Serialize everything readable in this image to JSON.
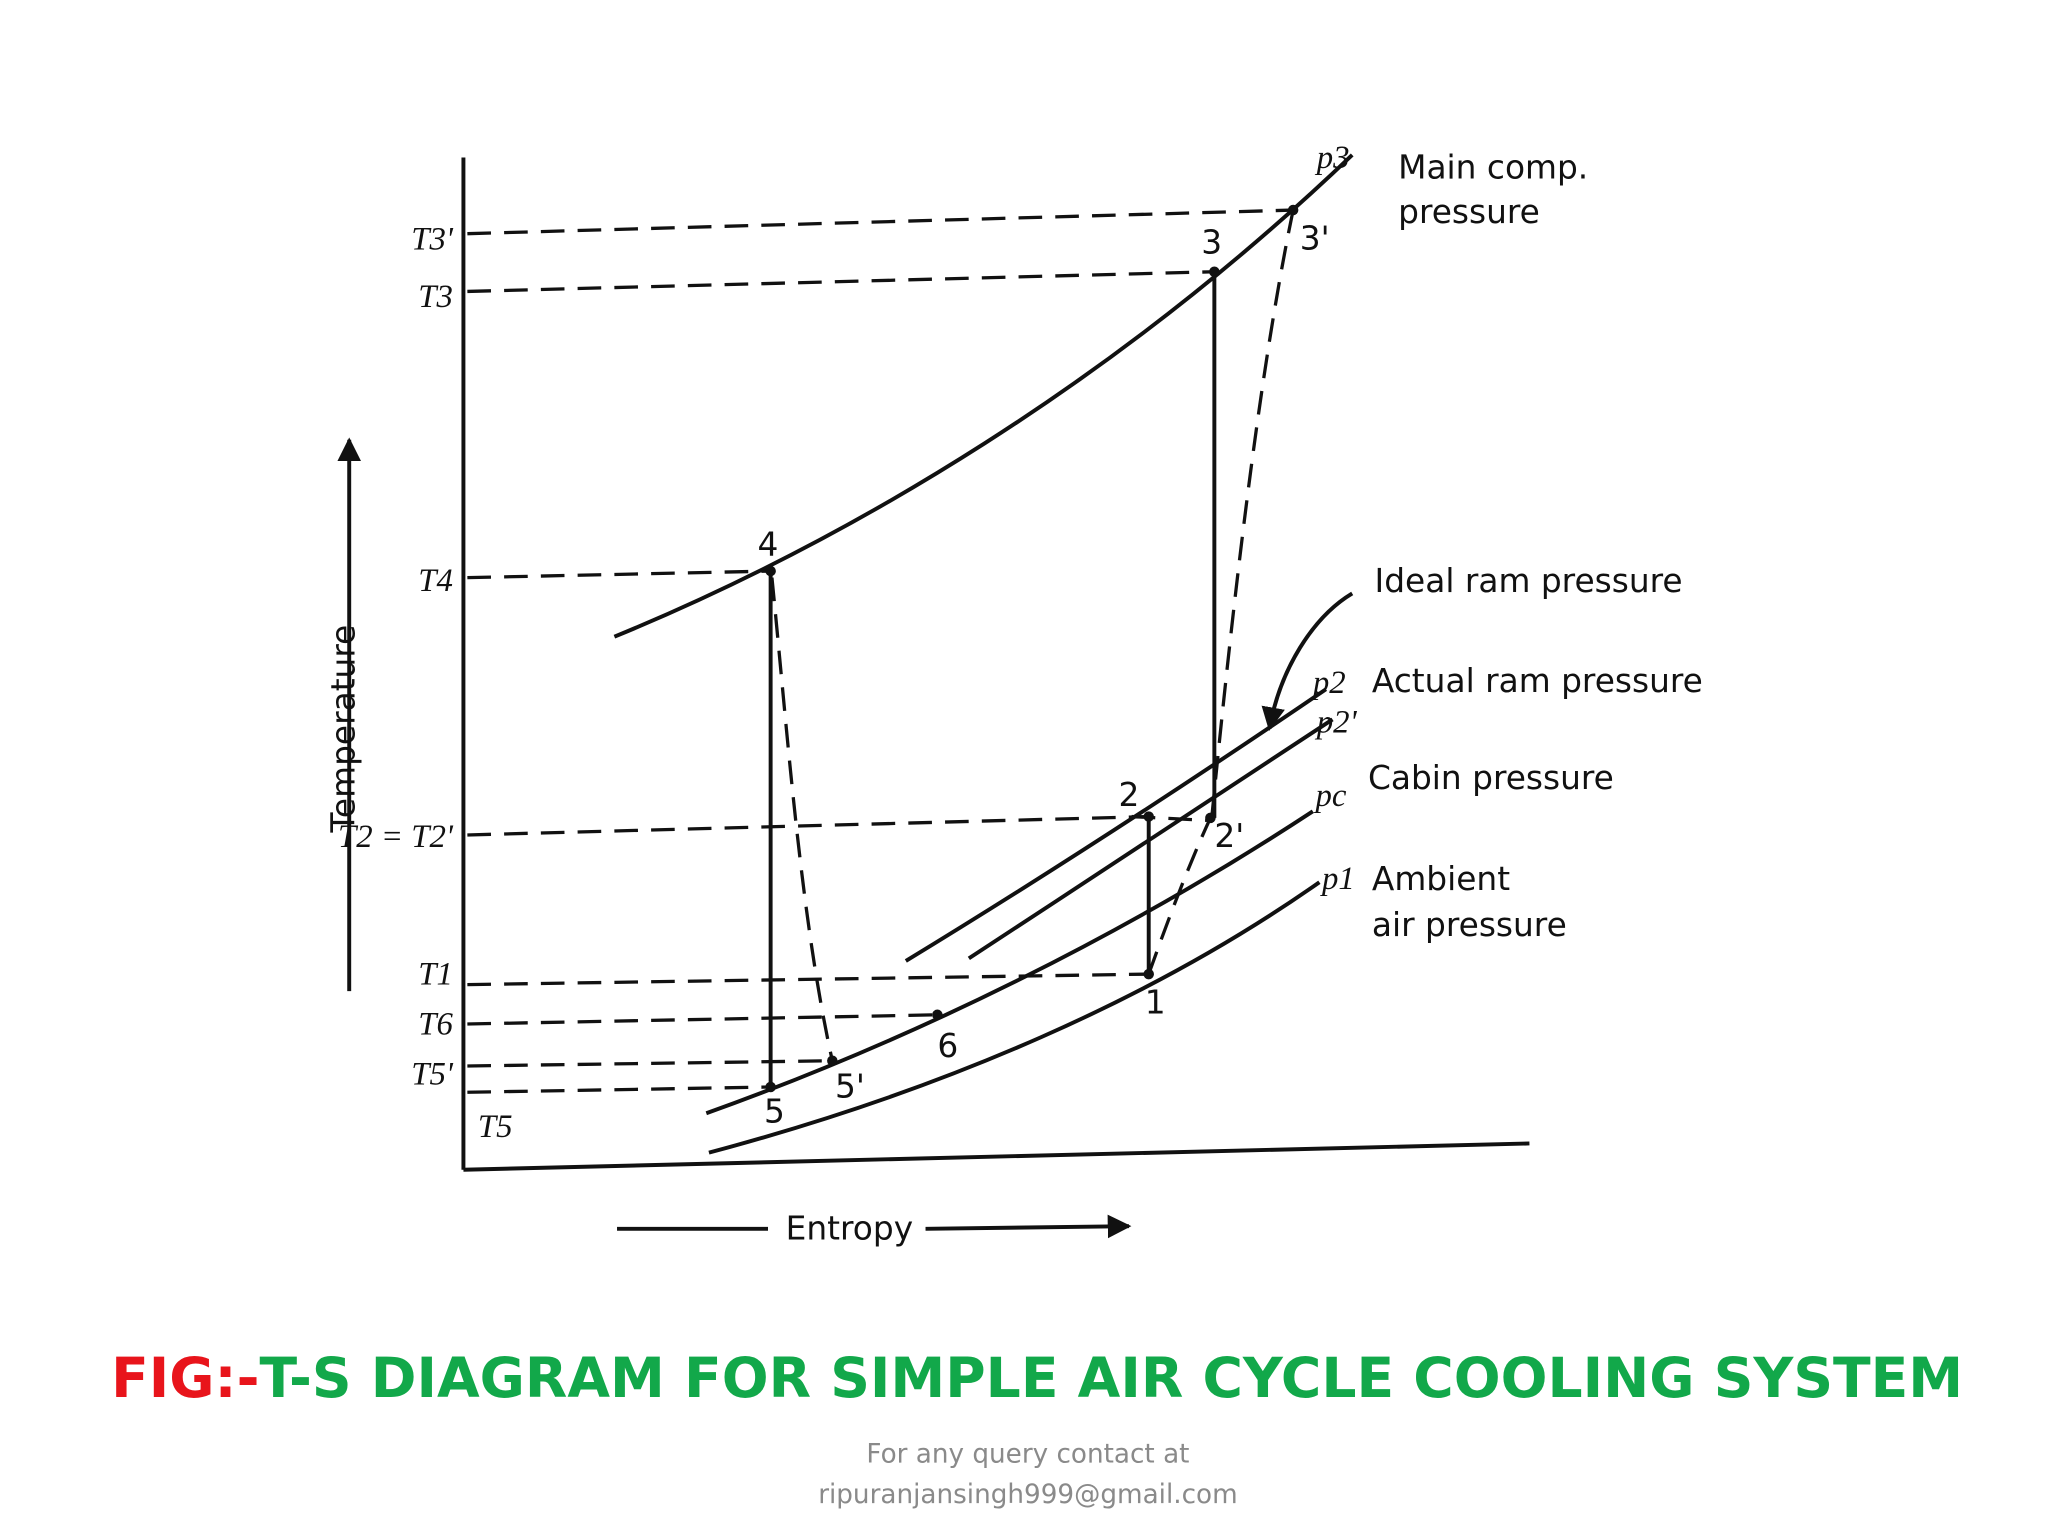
{
  "diagram": {
    "axis_labels": {
      "y": "Temperature",
      "x": "Entropy"
    },
    "temperature_labels": [
      "T3'",
      "T3",
      "T4",
      "T2 = T2'",
      "T1",
      "T6",
      "T5'",
      "T5"
    ],
    "point_labels": [
      "3",
      "3'",
      "4",
      "2",
      "2'",
      "1",
      "6",
      "5'",
      "5"
    ],
    "curve_labels": {
      "p3": "p3",
      "main_1": "Main comp.",
      "main_2": "pressure",
      "ideal": "Ideal ram pressure",
      "p2": "p2",
      "actual": "Actual ram pressure",
      "p2_prime": "p2'",
      "pc": "pc",
      "cabin": "Cabin pressure",
      "p1": "p1",
      "ambient_1": "Ambient",
      "ambient_2": "air pressure"
    }
  },
  "caption": {
    "prefix": "FIG:-",
    "title": "T-S DIAGRAM FOR SIMPLE AIR CYCLE COOLING SYSTEM"
  },
  "footer": {
    "line1": "For any query contact at",
    "line2": "ripuranjansingh999@gmail.com"
  }
}
